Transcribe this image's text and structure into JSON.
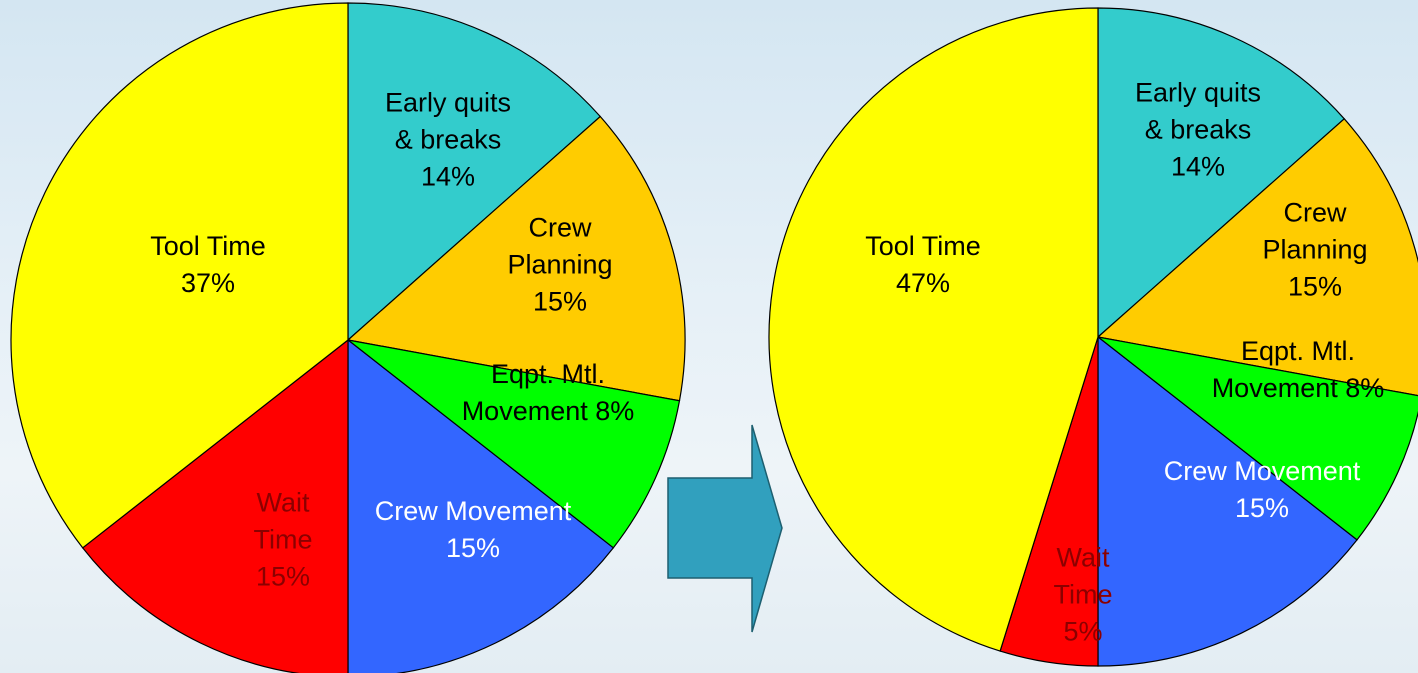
{
  "chart_data": [
    {
      "type": "pie",
      "categories": [
        "Early quits & breaks",
        "Crew Planning",
        "Eqpt. Mtl. Movement",
        "Crew Movement",
        "Wait Time",
        "Tool Time"
      ],
      "values": [
        14,
        15,
        8,
        15,
        15,
        37
      ],
      "value_labels": [
        "14%",
        "15%",
        "8%",
        "15%",
        "15%",
        "37%"
      ],
      "colors": [
        "#33cccc",
        "#ffcc00",
        "#00ff00",
        "#3366ff",
        "#ff0000",
        "#ffff00"
      ]
    },
    {
      "type": "pie",
      "categories": [
        "Early quits & breaks",
        "Crew Planning",
        "Eqpt. Mtl. Movement",
        "Crew Movement",
        "Wait Time",
        "Tool Time"
      ],
      "values": [
        14,
        15,
        8,
        15,
        5,
        47
      ],
      "value_labels": [
        "14%",
        "15%",
        "8%",
        "15%",
        "5%",
        "47%"
      ],
      "colors": [
        "#33cccc",
        "#ffcc00",
        "#00ff00",
        "#3366ff",
        "#ff0000",
        "#ffff00"
      ]
    }
  ]
}
